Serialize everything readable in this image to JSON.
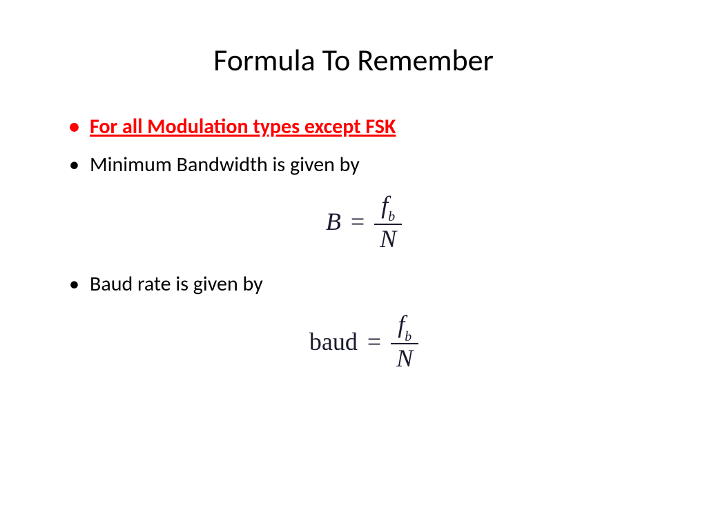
{
  "title": "Formula To Remember",
  "bullets": {
    "b1": "For all Modulation types except FSK",
    "b2": "Minimum Bandwidth is given by",
    "b3": "Baud rate is given by"
  },
  "formulas": {
    "bandwidth": {
      "lhs": "B",
      "lhs_style": "italic",
      "eq": "=",
      "numerator_main": "f",
      "numerator_sub": "b",
      "denominator": "N"
    },
    "baud": {
      "lhs": "baud",
      "lhs_style": "roman",
      "eq": "=",
      "numerator_main": "f",
      "numerator_sub": "b",
      "denominator": "N"
    }
  },
  "colors": {
    "emphasis": "#ff0000",
    "text": "#000000",
    "formula": "#1a1a2e",
    "background": "#ffffff"
  },
  "typography": {
    "title_fontsize": 44,
    "bullet_fontsize": 30,
    "formula_fontsize": 36,
    "title_font": "Calibri",
    "formula_font": "Cambria Math / Times New Roman"
  }
}
